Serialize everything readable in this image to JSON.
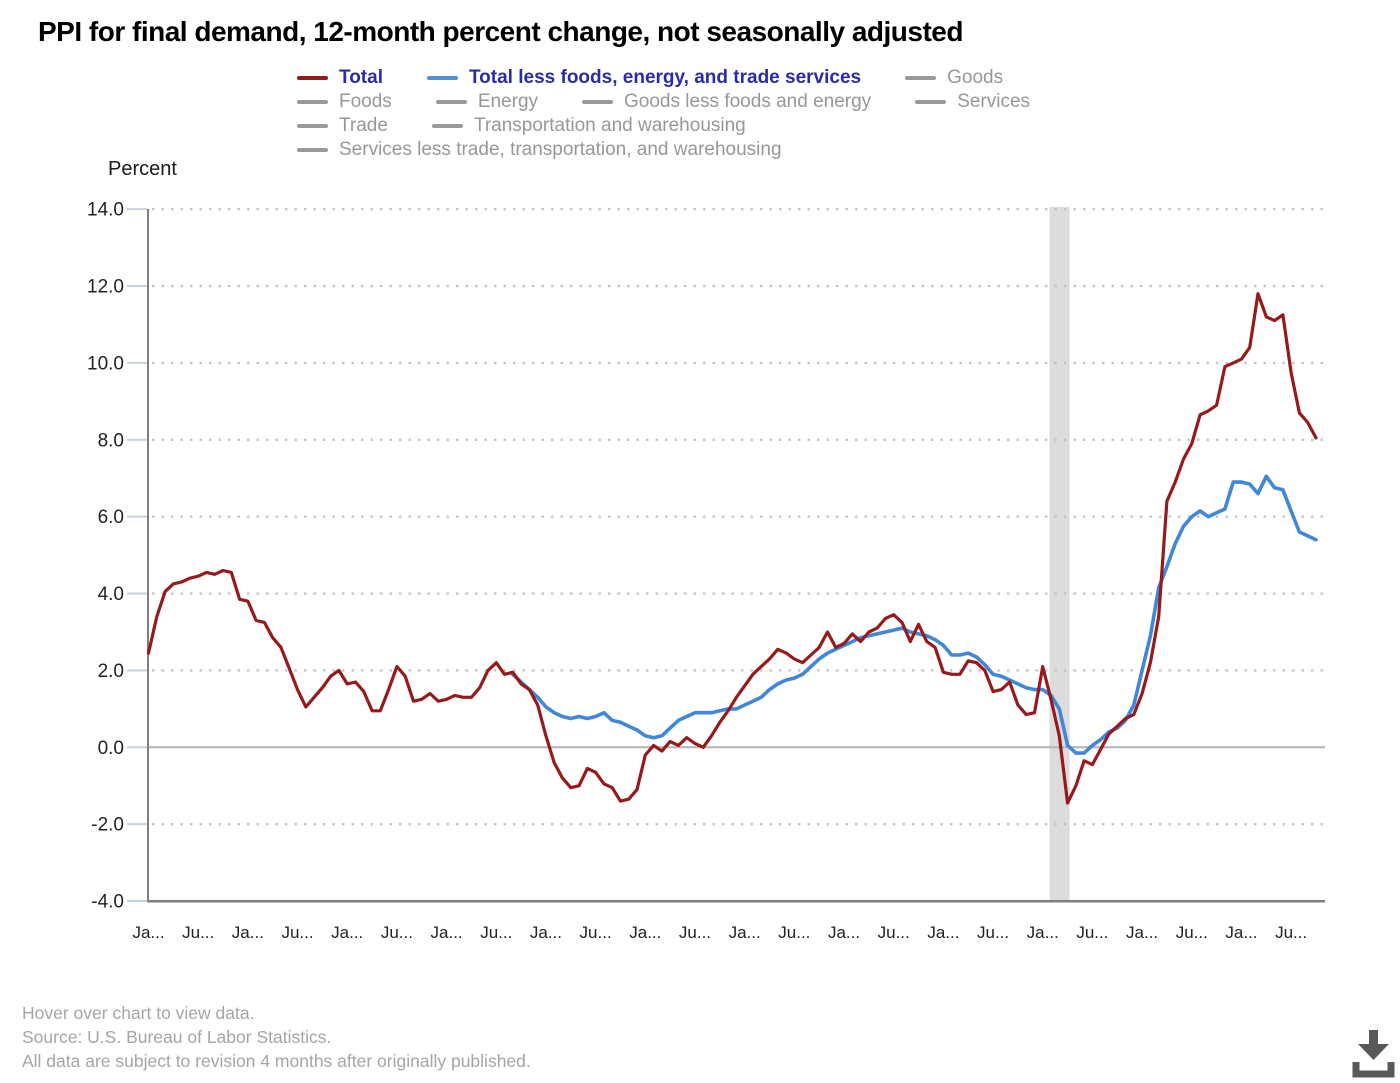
{
  "title": "PPI for final demand, 12-month percent change, not seasonally adjusted",
  "axis": {
    "y_title": "Percent",
    "y_ticks": [
      "14.0",
      "12.0",
      "10.0",
      "8.0",
      "6.0",
      "4.0",
      "2.0",
      "0.0",
      "-2.0",
      "-4.0"
    ],
    "x_ticks": [
      "Ja...",
      "Ju...",
      "Ja...",
      "Ju...",
      "Ja...",
      "Ju...",
      "Ja...",
      "Ju...",
      "Ja...",
      "Ju...",
      "Ja...",
      "Ju...",
      "Ja...",
      "Ju...",
      "Ja...",
      "Ju...",
      "Ja...",
      "Ju...",
      "Ja...",
      "Ju...",
      "Ja...",
      "Ju...",
      "Ja...",
      "Ju..."
    ]
  },
  "legend": {
    "rows": [
      [
        {
          "label": "Total",
          "active": true,
          "color": "#96191c"
        },
        {
          "label": "Total less foods, energy, and trade services",
          "active": true,
          "color": "#4a90d9"
        },
        {
          "label": "Goods",
          "active": false,
          "color": "#999999"
        }
      ],
      [
        {
          "label": "Foods",
          "active": false,
          "color": "#999999"
        },
        {
          "label": "Energy",
          "active": false,
          "color": "#999999"
        },
        {
          "label": "Goods less foods and energy",
          "active": false,
          "color": "#999999"
        },
        {
          "label": "Services",
          "active": false,
          "color": "#999999"
        }
      ],
      [
        {
          "label": "Trade",
          "active": false,
          "color": "#999999"
        },
        {
          "label": "Transportation and warehousing",
          "active": false,
          "color": "#999999"
        }
      ],
      [
        {
          "label": "Services less trade, transportation, and warehousing",
          "active": false,
          "color": "#999999"
        }
      ]
    ]
  },
  "footer": {
    "lines": [
      "Hover over chart to view data.",
      "Source: U.S. Bureau of Labor Statistics.",
      "All data are subject to revision 4 months after originally published."
    ]
  },
  "icons": {
    "download": "download-icon"
  },
  "colors": {
    "total_line": "#96191c",
    "core_line": "#4187d9",
    "grid_dots": "#c3c3c3",
    "zero_line": "#b3b3b3",
    "axis_line": "#7f7f7f",
    "tick_mark": "#c6d2dd",
    "tick_text": "#222222",
    "recession_band": "#dcdcdc",
    "active_legend_text": "#2b2ba3",
    "inactive_legend_text": "#979797",
    "download_icon": "#58595b"
  },
  "chart_data": {
    "type": "line",
    "title": "PPI for final demand, 12-month percent change, not seasonally adjusted",
    "xlabel": "",
    "ylabel": "Percent",
    "ylim": [
      -4.0,
      14.0
    ],
    "y_tick_step": 2.0,
    "grid": "dotted horizontal",
    "legend_position": "top",
    "frequency": "monthly",
    "x_start": "2011-01",
    "x_end": "2022-10",
    "x_tick_every_months": 6,
    "recession_band": {
      "from": "2020-02",
      "to": "2020-04"
    },
    "series": [
      {
        "name": "Total",
        "color": "#96191c",
        "start_month": "2011-01",
        "values": [
          2.45,
          3.4,
          4.05,
          4.25,
          4.3,
          4.4,
          4.45,
          4.55,
          4.5,
          4.6,
          4.55,
          3.85,
          3.8,
          3.3,
          3.25,
          2.85,
          2.6,
          2.05,
          1.5,
          1.05,
          1.3,
          1.55,
          1.85,
          2.0,
          1.65,
          1.7,
          1.45,
          0.95,
          0.95,
          1.5,
          2.1,
          1.85,
          1.2,
          1.25,
          1.4,
          1.2,
          1.25,
          1.35,
          1.3,
          1.3,
          1.55,
          2.0,
          2.2,
          1.9,
          1.95,
          1.65,
          1.5,
          1.1,
          0.3,
          -0.4,
          -0.8,
          -1.05,
          -1.0,
          -0.55,
          -0.65,
          -0.95,
          -1.05,
          -1.4,
          -1.35,
          -1.1,
          -0.2,
          0.05,
          -0.1,
          0.15,
          0.05,
          0.25,
          0.1,
          0.0,
          0.3,
          0.65,
          0.95,
          1.3,
          1.6,
          1.9,
          2.1,
          2.3,
          2.55,
          2.45,
          2.3,
          2.2,
          2.4,
          2.6,
          3.0,
          2.6,
          2.7,
          2.95,
          2.75,
          3.0,
          3.1,
          3.35,
          3.45,
          3.25,
          2.75,
          3.2,
          2.75,
          2.6,
          1.95,
          1.9,
          1.9,
          2.25,
          2.2,
          2.0,
          1.45,
          1.5,
          1.7,
          1.1,
          0.85,
          0.9,
          2.1,
          1.25,
          0.3,
          -1.45,
          -1.0,
          -0.35,
          -0.45,
          -0.05,
          0.35,
          0.55,
          0.75,
          0.85,
          1.4,
          2.2,
          3.4,
          6.4,
          6.9,
          7.5,
          7.9,
          8.65,
          8.75,
          8.9,
          9.9,
          10.0,
          10.1,
          10.4,
          11.8,
          11.2,
          11.1,
          11.25,
          9.75,
          8.7,
          8.45,
          8.05
        ]
      },
      {
        "name": "Total less foods, energy, and trade services",
        "color": "#4187d9",
        "start_month": "2014-09",
        "values": [
          1.9,
          1.7,
          1.5,
          1.3,
          1.05,
          0.9,
          0.8,
          0.75,
          0.8,
          0.75,
          0.8,
          0.9,
          0.7,
          0.65,
          0.55,
          0.45,
          0.3,
          0.25,
          0.3,
          0.5,
          0.7,
          0.8,
          0.9,
          0.9,
          0.9,
          0.95,
          1.0,
          1.0,
          1.1,
          1.2,
          1.3,
          1.5,
          1.65,
          1.75,
          1.8,
          1.9,
          2.1,
          2.3,
          2.45,
          2.55,
          2.65,
          2.75,
          2.85,
          2.9,
          2.95,
          3.0,
          3.05,
          3.1,
          3.0,
          2.95,
          2.9,
          2.8,
          2.65,
          2.4,
          2.4,
          2.45,
          2.35,
          2.15,
          1.9,
          1.85,
          1.75,
          1.65,
          1.55,
          1.5,
          1.5,
          1.35,
          1.0,
          0.05,
          -0.15,
          -0.15,
          0.05,
          0.2,
          0.4,
          0.5,
          0.7,
          1.1,
          2.0,
          2.9,
          4.15,
          4.7,
          5.3,
          5.75,
          6.0,
          6.15,
          6.0,
          6.1,
          6.2,
          6.9,
          6.9,
          6.85,
          6.6,
          7.05,
          6.75,
          6.7,
          6.15,
          5.6,
          5.5,
          5.4
        ]
      }
    ],
    "inactive_series_in_legend": [
      "Goods",
      "Foods",
      "Energy",
      "Goods less foods and energy",
      "Services",
      "Trade",
      "Transportation and warehousing",
      "Services less trade, transportation, and warehousing"
    ]
  }
}
